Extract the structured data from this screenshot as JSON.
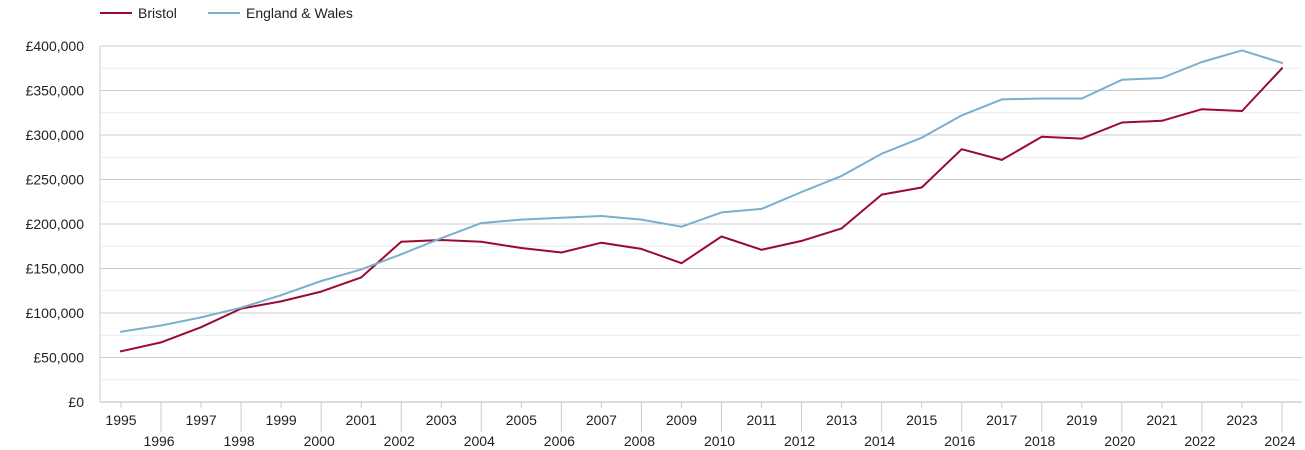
{
  "chart_data": {
    "type": "line",
    "title": "",
    "xlabel": "",
    "ylabel": "",
    "x": [
      1995,
      1996,
      1997,
      1998,
      1999,
      2000,
      2001,
      2002,
      2003,
      2004,
      2005,
      2006,
      2007,
      2008,
      2009,
      2010,
      2011,
      2012,
      2013,
      2014,
      2015,
      2016,
      2017,
      2018,
      2019,
      2020,
      2021,
      2022,
      2023,
      2024
    ],
    "x_tick_labels": [
      "1995",
      "1996",
      "1997",
      "1998",
      "1999",
      "2000",
      "2001",
      "2002",
      "2003",
      "2004",
      "2005",
      "2006",
      "2007",
      "2008",
      "2009",
      "2010",
      "2011",
      "2012",
      "2013",
      "2014",
      "2015",
      "2016",
      "2017",
      "2018",
      "2019",
      "2020",
      "2021",
      "2022",
      "2023",
      "2024"
    ],
    "ylim": [
      0,
      400000
    ],
    "y_ticks": [
      0,
      50000,
      100000,
      150000,
      200000,
      250000,
      300000,
      350000,
      400000
    ],
    "y_tick_labels": [
      "£0",
      "£50,000",
      "£100,000",
      "£150,000",
      "£200,000",
      "£250,000",
      "£300,000",
      "£350,000",
      "£400,000"
    ],
    "grid": true,
    "minor_grid": true,
    "legend_position": "top-left",
    "series": [
      {
        "name": "Bristol",
        "color": "#9b0a34",
        "values": [
          57000,
          67000,
          84000,
          105000,
          113000,
          124000,
          140000,
          180000,
          182000,
          180000,
          173000,
          168000,
          179000,
          172000,
          156000,
          186000,
          171000,
          181000,
          195000,
          233000,
          241000,
          284000,
          272000,
          298000,
          296000,
          314000,
          316000,
          329000,
          327000,
          375000
        ]
      },
      {
        "name": "England & Wales",
        "color": "#7aafd0",
        "values": [
          79000,
          86000,
          95000,
          106000,
          120000,
          136000,
          149000,
          166000,
          184000,
          201000,
          205000,
          207000,
          209000,
          205000,
          197000,
          213000,
          217000,
          236000,
          254000,
          279000,
          297000,
          322000,
          340000,
          341000,
          341000,
          362000,
          364000,
          382000,
          395000,
          381000
        ]
      }
    ]
  }
}
